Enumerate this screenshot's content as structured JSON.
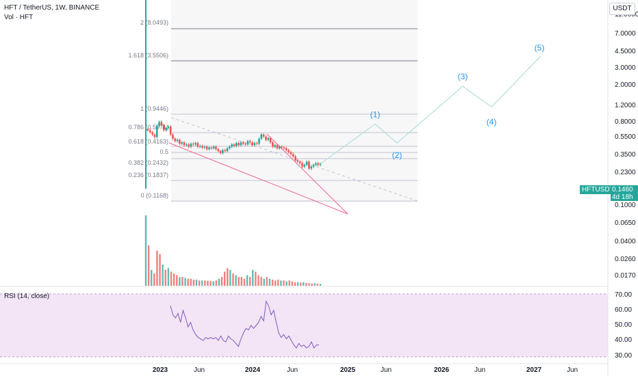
{
  "header": {
    "title": "HFT / TetherUS, 1W, BINANCE",
    "volume_label": "Vol · HFT",
    "currency_button": "USDT"
  },
  "rsi_label": "RSI (14, close)",
  "price_tag": {
    "symbol": "HFTUSDT",
    "price": "0.1460",
    "countdown": "4d 18h"
  },
  "price_axis": [
    "11.0000",
    "7.0000",
    "4.5000",
    "3.0000",
    "2.0000",
    "1.2000",
    "0.8000",
    "0.5500",
    "0.3500",
    "0.2300",
    "0.1460",
    "0.1000",
    "0.0650",
    "0.0400",
    "0.0260",
    "0.0170"
  ],
  "rsi_axis": [
    "70.00",
    "60.00",
    "50.00",
    "40.00",
    "30.00"
  ],
  "time_axis": [
    "2023",
    "Jun",
    "2024",
    "Jun",
    "2025",
    "Jun",
    "2026",
    "Jun",
    "2027",
    "Jun"
  ],
  "fib_levels": [
    "2 (8.0493)",
    "1.618 (3.5506)",
    "1 (0.9446)",
    "0.786 (0.5971)",
    "0.618 (0.4163)",
    "0.5",
    "0.382 (0.2432)",
    "0.236 (0.1837)",
    "0 (0.1168)"
  ],
  "wave_labels": [
    "(1)",
    "(2)",
    "(3)",
    "(4)",
    "(5)"
  ],
  "colors": {
    "up": "#26a69a",
    "down": "#ef5350",
    "wedge": "#f06292",
    "projection": "#b2dfdb",
    "wave_label": "#2196f3",
    "rsi_line": "#7e57c2",
    "rsi_band": "#f3e5f5"
  },
  "chart_data": {
    "type": "candlestick",
    "scale": "log",
    "interval": "1W",
    "close_series": [
      0.6,
      0.55,
      0.5,
      0.45,
      0.72,
      0.85,
      0.75,
      0.6,
      0.66,
      0.7,
      0.5,
      0.42,
      0.38,
      0.4,
      0.34,
      0.36,
      0.32,
      0.33,
      0.3,
      0.34,
      0.33,
      0.35,
      0.3,
      0.31,
      0.29,
      0.3,
      0.27,
      0.29,
      0.28,
      0.3,
      0.27,
      0.25,
      0.23,
      0.26,
      0.25,
      0.28,
      0.3,
      0.33,
      0.31,
      0.35,
      0.32,
      0.36,
      0.34,
      0.33,
      0.38,
      0.36,
      0.32,
      0.35,
      0.34,
      0.42,
      0.5,
      0.46,
      0.4,
      0.43,
      0.36,
      0.3,
      0.32,
      0.28,
      0.3,
      0.29,
      0.28,
      0.26,
      0.24,
      0.22,
      0.2,
      0.17,
      0.16,
      0.15,
      0.13,
      0.14,
      0.16,
      0.12,
      0.13,
      0.14,
      0.15,
      0.14,
      0.146
    ],
    "volume_series": [
      4.0,
      2.3,
      0.9,
      0.7,
      2.0,
      1.8,
      1.2,
      0.9,
      1.0,
      0.8,
      0.7,
      0.6,
      0.5,
      0.5,
      0.45,
      0.4,
      0.4,
      0.35,
      0.35,
      0.3,
      0.3,
      0.3,
      0.28,
      0.28,
      0.25,
      0.3,
      0.4,
      0.5,
      0.8,
      1.0,
      0.9,
      0.7,
      0.6,
      0.5,
      0.5,
      0.4,
      0.6,
      0.5,
      0.9,
      0.8,
      0.6,
      0.5,
      0.4,
      0.5,
      0.4,
      0.35,
      0.3,
      0.35,
      0.3,
      0.3,
      0.25,
      0.3,
      0.25,
      0.2,
      0.2,
      0.18,
      0.2,
      0.15,
      0.15,
      0.12,
      0.15,
      0.12,
      0.1
    ],
    "rsi_series": [
      63,
      57,
      55,
      58,
      52,
      60,
      55,
      49,
      52,
      47,
      44,
      42,
      41,
      40,
      42,
      41,
      42,
      41,
      42,
      40,
      43,
      40,
      39,
      43,
      41,
      40,
      38,
      36,
      41,
      45,
      48,
      47,
      50,
      48,
      50,
      52,
      56,
      53,
      66,
      63,
      57,
      60,
      52,
      45,
      42,
      44,
      41,
      43,
      40,
      37,
      35,
      38,
      36,
      37,
      35,
      36,
      39,
      35,
      37,
      37
    ],
    "wave_points": [
      [
        0.146,
        "current"
      ],
      [
        0.78,
        "(1)"
      ],
      [
        0.35,
        "(2)"
      ],
      [
        3.8,
        "(3)"
      ],
      [
        1.6,
        "(4)"
      ],
      [
        13.5,
        "(5)"
      ]
    ],
    "rsi_bands": [
      30,
      70
    ]
  }
}
